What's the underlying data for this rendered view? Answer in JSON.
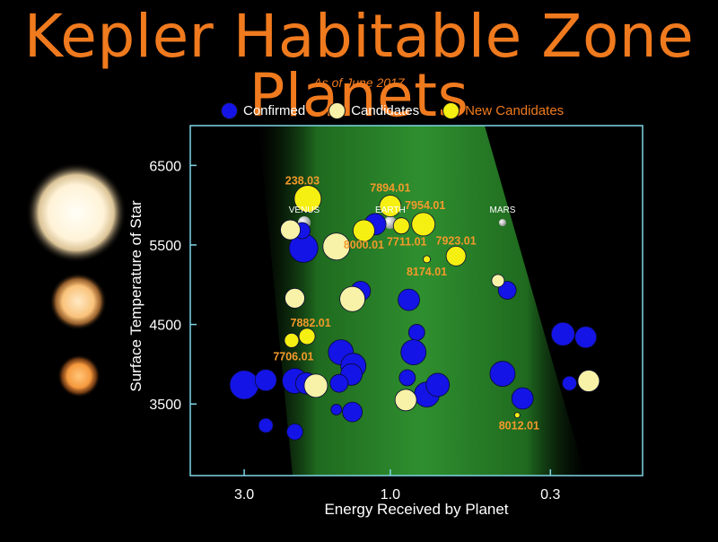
{
  "title": "Kepler Habitable Zone Planets",
  "subtitle": "As of June 2017",
  "legend": [
    {
      "label": "Confirmed",
      "color": "#1414e6",
      "text_color": "#ffffff"
    },
    {
      "label": "Candidates",
      "color": "#f8f2a8",
      "text_color": "#ffffff"
    },
    {
      "label": "New Candidates",
      "color": "#f5ef12",
      "text_color": "#f07a1e"
    }
  ],
  "colors": {
    "confirmed": "#1414e6",
    "candidate": "#f8f2a8",
    "new_candidate": "#f5ef12",
    "label": "#f39a2b",
    "frame": "#7fd6e6",
    "zone": "#2e8b2e"
  },
  "chart_data": {
    "type": "scatter",
    "xlabel": "Energy Received by Planet",
    "ylabel": "Surface Temperature of Star",
    "x_scale": "log",
    "x_reversed": true,
    "xlim": [
      4.5,
      0.15
    ],
    "ylim": [
      2600,
      7000
    ],
    "x_ticks": [
      {
        "value": 3.0,
        "label": "3.0"
      },
      {
        "value": 1.0,
        "label": "1.0"
      },
      {
        "value": 0.3,
        "label": "0.3"
      }
    ],
    "y_ticks": [
      {
        "value": 6500,
        "label": "6500"
      },
      {
        "value": 5500,
        "label": "5500"
      },
      {
        "value": 4500,
        "label": "4500"
      },
      {
        "value": 3500,
        "label": "3500"
      }
    ],
    "solar_system": [
      {
        "name": "VENUS",
        "x": 1.91,
        "y": 5780,
        "label_text": "VENUS"
      },
      {
        "name": "EARTH",
        "x": 1.0,
        "y": 5780,
        "label_text": "EARTH"
      },
      {
        "name": "MARS",
        "x": 0.43,
        "y": 5780,
        "label_text": "MARS"
      }
    ],
    "series": [
      {
        "name": "Confirmed",
        "points": [
          {
            "x": 3.0,
            "y": 3740,
            "r": 16
          },
          {
            "x": 2.55,
            "y": 3800,
            "r": 12
          },
          {
            "x": 2.05,
            "y": 3790,
            "r": 14
          },
          {
            "x": 1.88,
            "y": 3760,
            "r": 12
          },
          {
            "x": 2.55,
            "y": 3230,
            "r": 8
          },
          {
            "x": 2.05,
            "y": 3150,
            "r": 9
          },
          {
            "x": 1.92,
            "y": 5460,
            "r": 16
          },
          {
            "x": 1.94,
            "y": 5680,
            "r": 9
          },
          {
            "x": 1.45,
            "y": 4150,
            "r": 14
          },
          {
            "x": 1.32,
            "y": 3980,
            "r": 14
          },
          {
            "x": 1.34,
            "y": 3870,
            "r": 12
          },
          {
            "x": 1.47,
            "y": 3760,
            "r": 10
          },
          {
            "x": 1.5,
            "y": 3430,
            "r": 6
          },
          {
            "x": 1.33,
            "y": 3400,
            "r": 11
          },
          {
            "x": 1.25,
            "y": 4920,
            "r": 11
          },
          {
            "x": 1.12,
            "y": 5760,
            "r": 12
          },
          {
            "x": 0.87,
            "y": 4810,
            "r": 12
          },
          {
            "x": 0.82,
            "y": 4400,
            "r": 9
          },
          {
            "x": 0.84,
            "y": 4150,
            "r": 14
          },
          {
            "x": 0.88,
            "y": 3830,
            "r": 9
          },
          {
            "x": 0.76,
            "y": 3620,
            "r": 14
          },
          {
            "x": 0.7,
            "y": 3740,
            "r": 13
          },
          {
            "x": 0.415,
            "y": 4930,
            "r": 10
          },
          {
            "x": 0.43,
            "y": 3880,
            "r": 14
          },
          {
            "x": 0.37,
            "y": 3570,
            "r": 12
          },
          {
            "x": 0.273,
            "y": 4380,
            "r": 13
          },
          {
            "x": 0.23,
            "y": 4340,
            "r": 12
          },
          {
            "x": 0.26,
            "y": 3760,
            "r": 8
          }
        ]
      },
      {
        "name": "Candidates",
        "points": [
          {
            "x": 2.12,
            "y": 5690,
            "r": 11
          },
          {
            "x": 1.5,
            "y": 5480,
            "r": 15
          },
          {
            "x": 2.05,
            "y": 4830,
            "r": 11
          },
          {
            "x": 1.33,
            "y": 4820,
            "r": 14
          },
          {
            "x": 1.75,
            "y": 3730,
            "r": 13
          },
          {
            "x": 0.89,
            "y": 3550,
            "r": 12
          },
          {
            "x": 0.445,
            "y": 5050,
            "r": 7
          },
          {
            "x": 0.225,
            "y": 3790,
            "r": 12
          }
        ]
      },
      {
        "name": "New Candidates",
        "points": [
          {
            "x": 1.86,
            "y": 6080,
            "r": 15,
            "label": "238.03",
            "label_dx": -6,
            "label_dy": -16
          },
          {
            "x": 1.0,
            "y": 5990,
            "r": 12,
            "label": "7894.01",
            "label_dx": 0,
            "label_dy": -16
          },
          {
            "x": 0.78,
            "y": 5760,
            "r": 13,
            "label": "7954.01",
            "label_dx": 2,
            "label_dy": -17
          },
          {
            "x": 0.92,
            "y": 5740,
            "r": 9,
            "label": "7711.01",
            "label_dx": 6,
            "label_dy": 22
          },
          {
            "x": 1.22,
            "y": 5680,
            "r": 12,
            "label": "8000.01",
            "label_dx": 0,
            "label_dy": 20
          },
          {
            "x": 0.61,
            "y": 5360,
            "r": 11,
            "label": "7923.01",
            "label_dx": 0,
            "label_dy": -13
          },
          {
            "x": 0.76,
            "y": 5320,
            "r": 4,
            "label": "8174.01",
            "label_dx": 0,
            "label_dy": 18
          },
          {
            "x": 1.87,
            "y": 4350,
            "r": 9,
            "label": "7882.01",
            "label_dx": 4,
            "label_dy": -11
          },
          {
            "x": 2.1,
            "y": 4300,
            "r": 8,
            "label": "7706.01",
            "label_dx": 2,
            "label_dy": 22
          },
          {
            "x": 0.385,
            "y": 3360,
            "r": 3,
            "label": "8012.01",
            "label_dx": 2,
            "label_dy": 16
          }
        ]
      }
    ]
  }
}
